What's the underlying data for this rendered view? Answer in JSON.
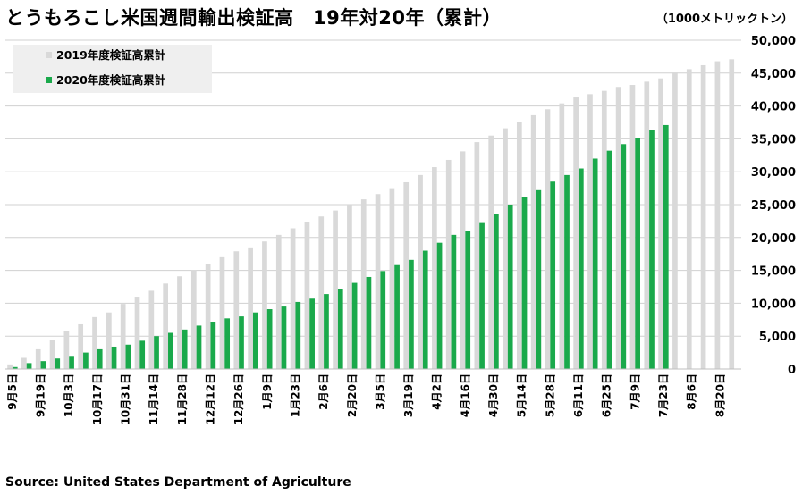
{
  "title": "とうもろこし米国週間輸出検証高　19年対20年（累計）",
  "unit": "（1000メトリックトン）",
  "source": "Source: United States Department of Agriculture",
  "colors": {
    "series_2019": "#d9d9d9",
    "series_2020": "#1aa94b",
    "grid": "#d0d0d0",
    "legend_bg": "#efefef"
  },
  "chart_data": {
    "type": "bar",
    "x": [
      "9月5日",
      "9月12日",
      "9月19日",
      "9月26日",
      "10月3日",
      "10月10日",
      "10月17日",
      "10月24日",
      "10月31日",
      "11月7日",
      "11月14日",
      "11月21日",
      "11月28日",
      "12月5日",
      "12月12日",
      "12月19日",
      "12月26日",
      "1月2日",
      "1月9日",
      "1月16日",
      "1月23日",
      "1月30日",
      "2月6日",
      "2月13日",
      "2月20日",
      "2月27日",
      "3月5日",
      "3月12日",
      "3月19日",
      "3月26日",
      "4月2日",
      "4月9日",
      "4月16日",
      "4月23日",
      "4月30日",
      "5月7日",
      "5月14日",
      "5月21日",
      "5月28日",
      "6月4日",
      "6月11日",
      "6月18日",
      "6月25日",
      "7月2日",
      "7月9日",
      "7月16日",
      "7月23日",
      "7月30日",
      "8月6日",
      "8月13日",
      "8月20日",
      "8月27日"
    ],
    "x_tick_labels": [
      "9月5日",
      "9月19日",
      "10月3日",
      "10月17日",
      "10月31日",
      "11月14日",
      "11月28日",
      "12月12日",
      "12月26日",
      "1月9日",
      "1月23日",
      "2月6日",
      "2月20日",
      "3月5日",
      "3月19日",
      "4月2日",
      "4月16日",
      "4月30日",
      "5月14日",
      "5月28日",
      "6月11日",
      "6月25日",
      "7月9日",
      "7月23日",
      "8月6日",
      "8月20日"
    ],
    "series": [
      {
        "name": "2019年度検証高累計",
        "values": [
          700,
          1700,
          3000,
          4400,
          5800,
          6800,
          7900,
          8600,
          9900,
          11000,
          11900,
          13000,
          14100,
          15000,
          16000,
          17000,
          17900,
          18500,
          19400,
          20400,
          21400,
          22300,
          23200,
          24100,
          25000,
          25800,
          26600,
          27500,
          28400,
          29500,
          30700,
          31800,
          33100,
          34500,
          35500,
          36600,
          37500,
          38600,
          39500,
          40400,
          41300,
          41800,
          42300,
          42900,
          43200,
          43700,
          44200,
          45100,
          45600,
          46200,
          46800,
          47100
        ]
      },
      {
        "name": "2020年度検証高累計",
        "values": [
          300,
          900,
          1200,
          1600,
          2000,
          2500,
          3000,
          3400,
          3700,
          4300,
          5000,
          5500,
          6000,
          6600,
          7200,
          7700,
          8000,
          8600,
          9100,
          9500,
          10200,
          10700,
          11400,
          12200,
          13100,
          14000,
          14900,
          15800,
          16600,
          18000,
          19200,
          20400,
          21000,
          22200,
          23600,
          25000,
          26100,
          27200,
          28500,
          29500,
          30500,
          32000,
          33200,
          34200,
          35100,
          36400,
          37100,
          null,
          null,
          null,
          null,
          null
        ],
        "color": "#1aa94b"
      }
    ],
    "ylim": [
      0,
      50000
    ],
    "y_ticks": [
      "0",
      "5,000",
      "10,000",
      "15,000",
      "20,000",
      "25,000",
      "30,000",
      "35,000",
      "40,000",
      "45,000",
      "50,000"
    ],
    "grid": true,
    "legend_position": "top-left"
  }
}
